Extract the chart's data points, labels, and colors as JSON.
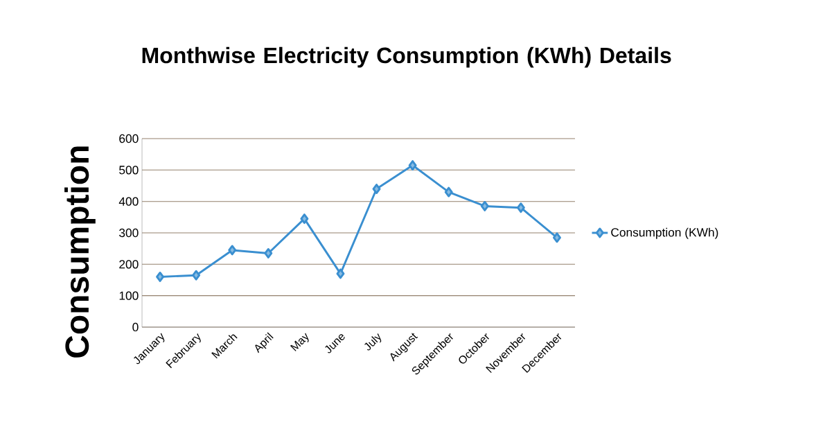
{
  "chart_data": {
    "type": "line",
    "title": "Monthwise Electricity Consumption (KWh) Details",
    "ylabel": "Consumption",
    "categories": [
      "January",
      "February",
      "March",
      "April",
      "May",
      "June",
      "July",
      "August",
      "September",
      "October",
      "November",
      "December"
    ],
    "series": [
      {
        "name": "Consumption (KWh)",
        "color": "#3a8fd0",
        "values": [
          160,
          165,
          245,
          235,
          345,
          170,
          440,
          515,
          430,
          385,
          380,
          285
        ]
      }
    ],
    "ylim": [
      0,
      600
    ],
    "yticks": [
      0,
      100,
      200,
      300,
      400,
      500,
      600
    ],
    "grid": "y",
    "legend": "right",
    "marker": "diamond",
    "line_style": "solid"
  }
}
